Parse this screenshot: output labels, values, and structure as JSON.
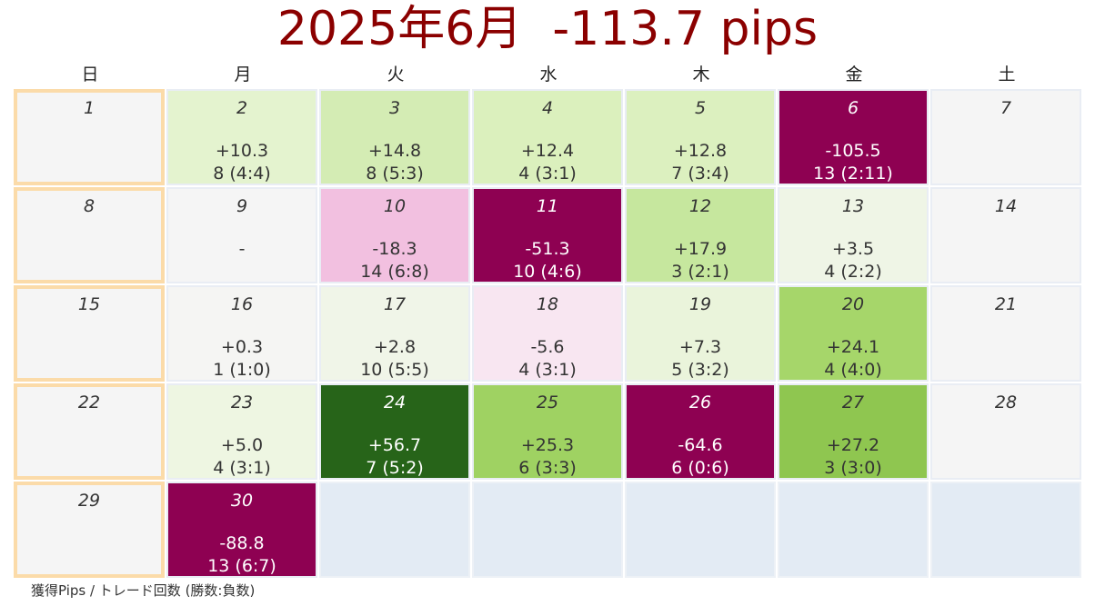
{
  "title": "2025年6月  -113.7 pips",
  "footnote": "獲得Pips / トレード回数 (勝数:負数)",
  "colors": {
    "title": "#8b0000",
    "neutral": "#f5f5f5",
    "empty": "#e3ebf4",
    "sunday_border": "#fbdba9",
    "text_dark": "#333333",
    "text_light": "#ffffff"
  },
  "chart_data": {
    "type": "heatmap",
    "title": "2025年6月  -113.7 pips",
    "total_pips": -113.7,
    "weekdays": [
      "日",
      "月",
      "火",
      "水",
      "木",
      "金",
      "土"
    ],
    "legend_note": "獲得Pips / トレード回数 (勝数:負数)",
    "weeks": [
      [
        {
          "day": "1",
          "pips": "",
          "trades": "",
          "value": null,
          "color": "#f5f5f5"
        },
        {
          "day": "2",
          "pips": "+10.3",
          "trades": "8 (4:4)",
          "value": 10.3,
          "color": "#e4f3cf"
        },
        {
          "day": "3",
          "pips": "+14.8",
          "trades": "8 (5:3)",
          "value": 14.8,
          "color": "#d4ecb4"
        },
        {
          "day": "4",
          "pips": "+12.4",
          "trades": "4 (3:1)",
          "value": 12.4,
          "color": "#dbf0bd"
        },
        {
          "day": "5",
          "pips": "+12.8",
          "trades": "7 (3:4)",
          "value": 12.8,
          "color": "#dcf0bf"
        },
        {
          "day": "6",
          "pips": "-105.5",
          "trades": "13 (2:11)",
          "value": -105.5,
          "color": "#8e0152"
        },
        {
          "day": "7",
          "pips": "",
          "trades": "",
          "value": null,
          "color": "#f5f5f5"
        }
      ],
      [
        {
          "day": "8",
          "pips": "",
          "trades": "",
          "value": null,
          "color": "#f5f5f5"
        },
        {
          "day": "9",
          "pips": "-",
          "trades": "",
          "value": null,
          "color": "#f5f5f5"
        },
        {
          "day": "10",
          "pips": "-18.3",
          "trades": "14 (6:8)",
          "value": -18.3,
          "color": "#f2c0e0"
        },
        {
          "day": "11",
          "pips": "-51.3",
          "trades": "10 (4:6)",
          "value": -51.3,
          "color": "#8e0152"
        },
        {
          "day": "12",
          "pips": "+17.9",
          "trades": "3 (2:1)",
          "value": 17.9,
          "color": "#c6e79e"
        },
        {
          "day": "13",
          "pips": "+3.5",
          "trades": "4 (2:2)",
          "value": 3.5,
          "color": "#eff5e6"
        },
        {
          "day": "14",
          "pips": "",
          "trades": "",
          "value": null,
          "color": "#f5f5f5"
        }
      ],
      [
        {
          "day": "15",
          "pips": "",
          "trades": "",
          "value": null,
          "color": "#f5f5f5"
        },
        {
          "day": "16",
          "pips": "+0.3",
          "trades": "1 (1:0)",
          "value": 0.3,
          "color": "#f5f5f3"
        },
        {
          "day": "17",
          "pips": "+2.8",
          "trades": "10 (5:5)",
          "value": 2.8,
          "color": "#f0f5e8"
        },
        {
          "day": "18",
          "pips": "-5.6",
          "trades": "4 (3:1)",
          "value": -5.6,
          "color": "#f8e6f1"
        },
        {
          "day": "19",
          "pips": "+7.3",
          "trades": "5 (3:2)",
          "value": 7.3,
          "color": "#eaf4db"
        },
        {
          "day": "20",
          "pips": "+24.1",
          "trades": "4 (4:0)",
          "value": 24.1,
          "color": "#a6d66a"
        },
        {
          "day": "21",
          "pips": "",
          "trades": "",
          "value": null,
          "color": "#f5f5f5"
        }
      ],
      [
        {
          "day": "22",
          "pips": "",
          "trades": "",
          "value": null,
          "color": "#f5f5f5"
        },
        {
          "day": "23",
          "pips": "+5.0",
          "trades": "4 (3:1)",
          "value": 5.0,
          "color": "#eef6e2"
        },
        {
          "day": "24",
          "pips": "+56.7",
          "trades": "7 (5:2)",
          "value": 56.7,
          "color": "#276419"
        },
        {
          "day": "25",
          "pips": "+25.3",
          "trades": "6 (3:3)",
          "value": 25.3,
          "color": "#9fd262"
        },
        {
          "day": "26",
          "pips": "-64.6",
          "trades": "6 (0:6)",
          "value": -64.6,
          "color": "#8e0152"
        },
        {
          "day": "27",
          "pips": "+27.2",
          "trades": "3 (3:0)",
          "value": 27.2,
          "color": "#8fc650"
        },
        {
          "day": "28",
          "pips": "",
          "trades": "",
          "value": null,
          "color": "#f5f5f5"
        }
      ],
      [
        {
          "day": "29",
          "pips": "",
          "trades": "",
          "value": null,
          "color": "#f5f5f5"
        },
        {
          "day": "30",
          "pips": "-88.8",
          "trades": "13 (6:7)",
          "value": -88.8,
          "color": "#8e0152"
        },
        {
          "day": "",
          "pips": "",
          "trades": "",
          "value": null,
          "color": "#e3ebf4",
          "empty": true
        },
        {
          "day": "",
          "pips": "",
          "trades": "",
          "value": null,
          "color": "#e3ebf4",
          "empty": true
        },
        {
          "day": "",
          "pips": "",
          "trades": "",
          "value": null,
          "color": "#e3ebf4",
          "empty": true
        },
        {
          "day": "",
          "pips": "",
          "trades": "",
          "value": null,
          "color": "#e3ebf4",
          "empty": true
        },
        {
          "day": "",
          "pips": "",
          "trades": "",
          "value": null,
          "color": "#e3ebf4",
          "empty": true
        }
      ]
    ]
  }
}
